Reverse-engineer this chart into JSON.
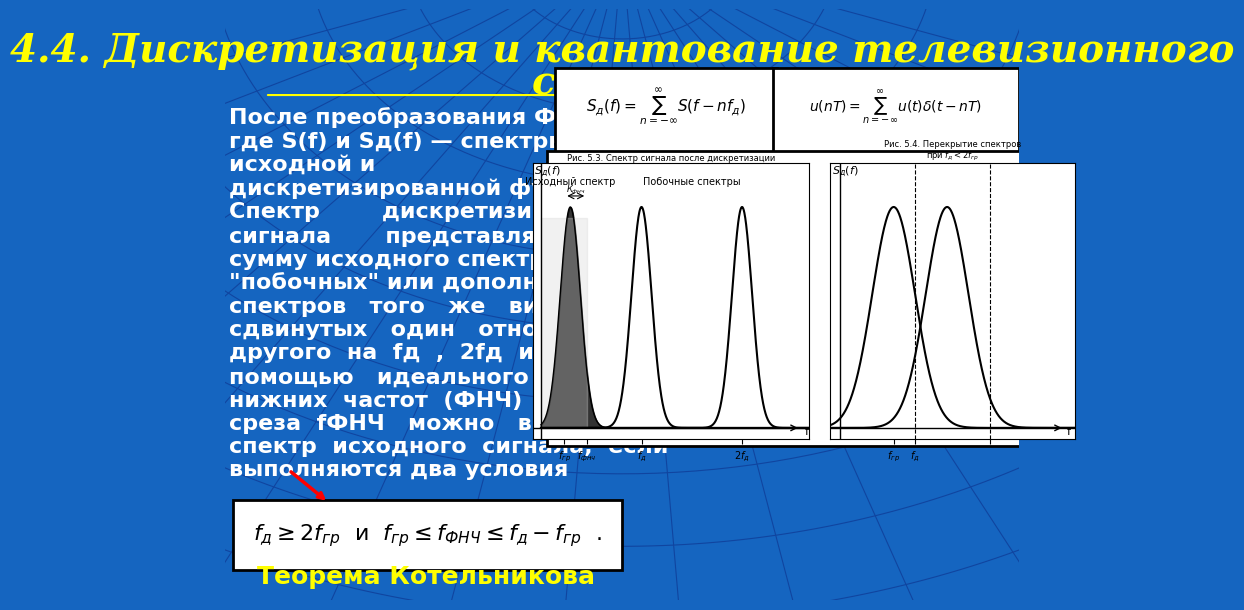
{
  "bg_color": "#1565C0",
  "title_line1": "4.4. Дискретизация и квантование телевизионного",
  "title_line2": "сигнала",
  "title_color": "#FFFF00",
  "title_fontsize": 28,
  "body_text": "После преобразования Фурье\nгде S(f) и Sд(f) — спектры\nисходной и\nдискретизированной функций\nСпектр        дискретизированного\nсигнала       представляет       собой\nсумму исходного спектра (п=0) и\n\"побочных\" или дополнительных\nспектров   того   же   вида,   но\nсдвинутых   один   относительно\nдругого  на  fд  ,  2fд  и  т.  д.  С\nпомощью   идеального   фильтра\nнижних  частот  (ФНЧ)  с  частотой\nсреза  fФНЧ   можно   выделить\nспектр  исходного  сигнала,  если\nвыполняются два условия",
  "body_color": "#FFFFFF",
  "body_fontsize": 16,
  "kotelnkov_text": "Теорема Котельникова",
  "kotelnkov_color": "#FFFF00",
  "kotelnkov_fontsize": 18,
  "grid_color": "#1045A0",
  "grid_linewidth": 0.8
}
